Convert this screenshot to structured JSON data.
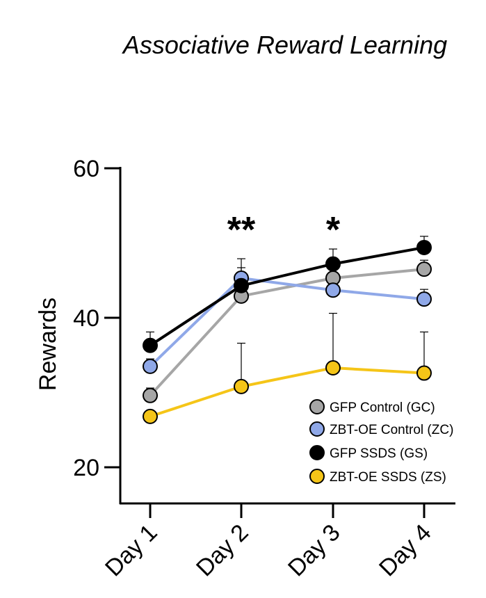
{
  "chart_data": {
    "type": "line",
    "title": "Associative Reward Learning",
    "xlabel": "",
    "ylabel": "Rewards",
    "categories": [
      "Day 1",
      "Day 2",
      "Day 3",
      "Day 4"
    ],
    "y_ticks": [
      "20",
      "40",
      "60"
    ],
    "ylim": [
      15,
      60
    ],
    "grid": false,
    "legend_position": "bottom-right",
    "series": [
      {
        "name": "GFP Control (GC)",
        "color": "#a6a6a6",
        "values": [
          29.6,
          42.9,
          45.3,
          46.5
        ],
        "error": [
          1.0,
          1.3,
          1.2,
          1.2
        ]
      },
      {
        "name": "ZBT-OE Control (ZC)",
        "color": "#8fa8e8",
        "values": [
          33.5,
          45.3,
          43.7,
          42.5
        ],
        "error": [
          1.0,
          2.6,
          1.6,
          1.3
        ]
      },
      {
        "name": "GFP SSDS (GS)",
        "color": "#000000",
        "values": [
          36.3,
          44.3,
          47.2,
          49.4
        ],
        "error": [
          1.8,
          2.4,
          2.0,
          1.5
        ]
      },
      {
        "name": "ZBT-OE SSDS (ZS)",
        "color": "#f5c518",
        "values": [
          26.8,
          30.8,
          33.3,
          32.6
        ],
        "error": [
          0.0,
          5.8,
          7.3,
          5.5
        ]
      }
    ],
    "annotations": [
      {
        "category": "Day 2",
        "text": "**"
      },
      {
        "category": "Day 3",
        "text": "*"
      }
    ]
  }
}
